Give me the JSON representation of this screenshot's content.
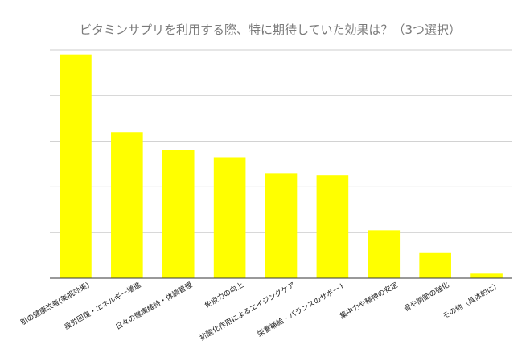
{
  "chart_data": {
    "type": "bar",
    "title": "ビタミンサプリを利用する際、特に期待していた効果は？（3つ選択）",
    "xlabel": "",
    "ylabel": "",
    "categories": [
      "肌の健康改善(美肌効果)",
      "疲労回復・エネルギー増進",
      "日々の健康維持・体調管理",
      "免疫力の向上",
      "抗酸化作用によるエイジングケア",
      "栄養補給・バランスのサポート",
      "集中力や精神の安定",
      "骨や関節の強化",
      "その他（具体的に）"
    ],
    "values": [
      49,
      32,
      28,
      26.5,
      23,
      22.5,
      10.5,
      5.5,
      1
    ],
    "ylim": [
      0,
      50
    ],
    "y_gridlines": [
      0,
      10,
      20,
      30,
      40,
      50
    ],
    "y_tick_labels_shown": false,
    "grid": true,
    "legend": "none",
    "bar_color": "#ffff00",
    "grid_color": "#cccccc",
    "axis_color": "#333333",
    "title_color": "#7a7a7a"
  }
}
